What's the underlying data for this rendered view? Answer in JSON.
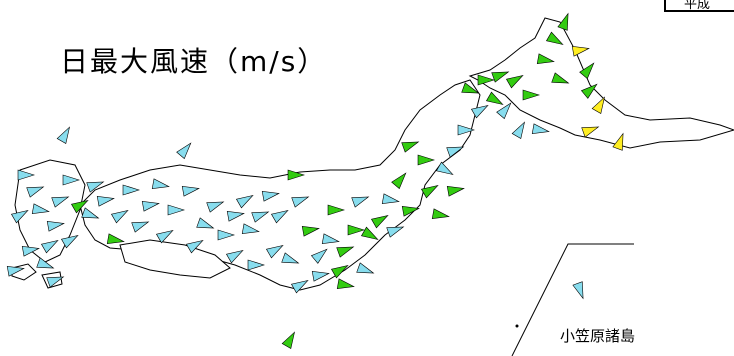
{
  "title": "日最大風速（m/s）",
  "corner_label": "平成",
  "inset": {
    "label": "小笠原諸島"
  },
  "colors": {
    "land_fill": "#ffffff",
    "coastline": "#000000",
    "arrow_green": "#33cc11",
    "arrow_cyan": "#88ddee",
    "arrow_yellow": "#ffee22"
  },
  "legend_color_meanings": [
    "green",
    "cyan",
    "yellow"
  ]
}
